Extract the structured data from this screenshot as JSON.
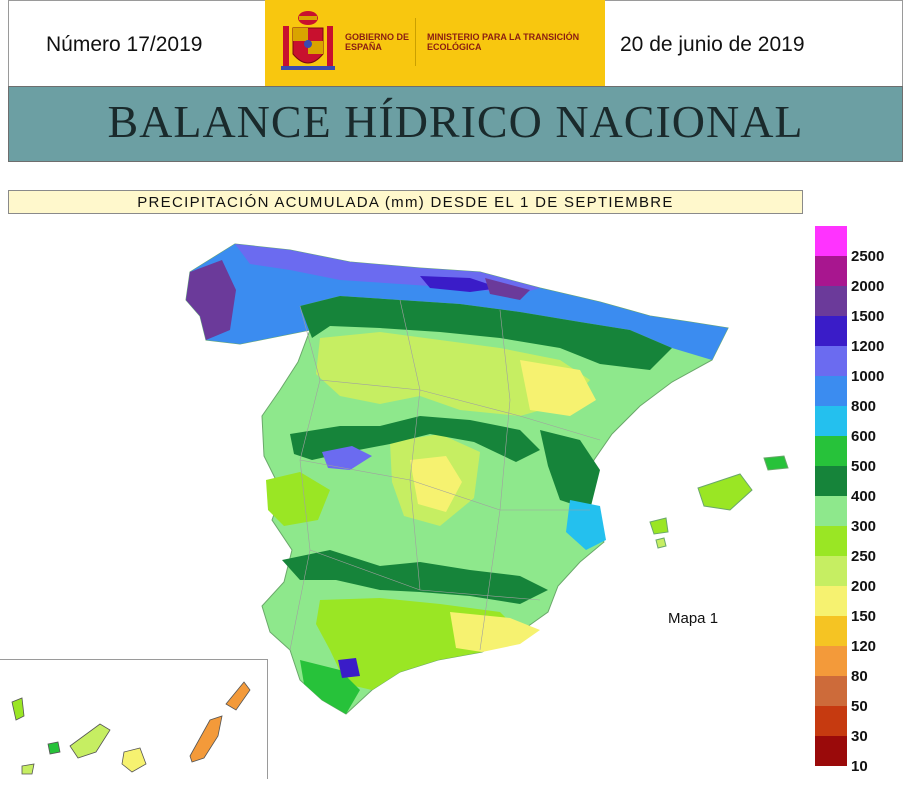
{
  "header": {
    "issue": "Número 17/2019",
    "date": "20 de junio de 2019",
    "logo_gobierno": "GOBIERNO DE ESPAÑA",
    "logo_ministerio": "MINISTERIO PARA LA TRANSICIÓN ECOLÓGICA"
  },
  "title": "BALANCE HÍDRICO NACIONAL",
  "subtitle": "PRECIPITACIÓN ACUMULADA (mm) DESDE EL 1 DE SEPTIEMBRE",
  "map": {
    "label": "Mapa 1",
    "region": "Península Ibérica, Baleares y Canarias"
  },
  "legend": {
    "classes": [
      {
        "label": "2500",
        "color": "#ff33ff"
      },
      {
        "label": "2000",
        "color": "#a8168f"
      },
      {
        "label": "1500",
        "color": "#6b3a9a"
      },
      {
        "label": "1200",
        "color": "#3a1cc8"
      },
      {
        "label": "1000",
        "color": "#6b6bf0"
      },
      {
        "label": "800",
        "color": "#3b8cf0"
      },
      {
        "label": "600",
        "color": "#24c0ee"
      },
      {
        "label": "500",
        "color": "#27c23a"
      },
      {
        "label": "400",
        "color": "#16843a"
      },
      {
        "label": "300",
        "color": "#8ee88c"
      },
      {
        "label": "250",
        "color": "#9ae624"
      },
      {
        "label": "200",
        "color": "#c6ee62"
      },
      {
        "label": "150",
        "color": "#f6f270"
      },
      {
        "label": "120",
        "color": "#f5c423"
      },
      {
        "label": "80",
        "color": "#f39a3a"
      },
      {
        "label": "50",
        "color": "#cd6b3a"
      },
      {
        "label": "30",
        "color": "#c63a10"
      },
      {
        "label": "10",
        "color": "#9a0a0a"
      }
    ]
  }
}
